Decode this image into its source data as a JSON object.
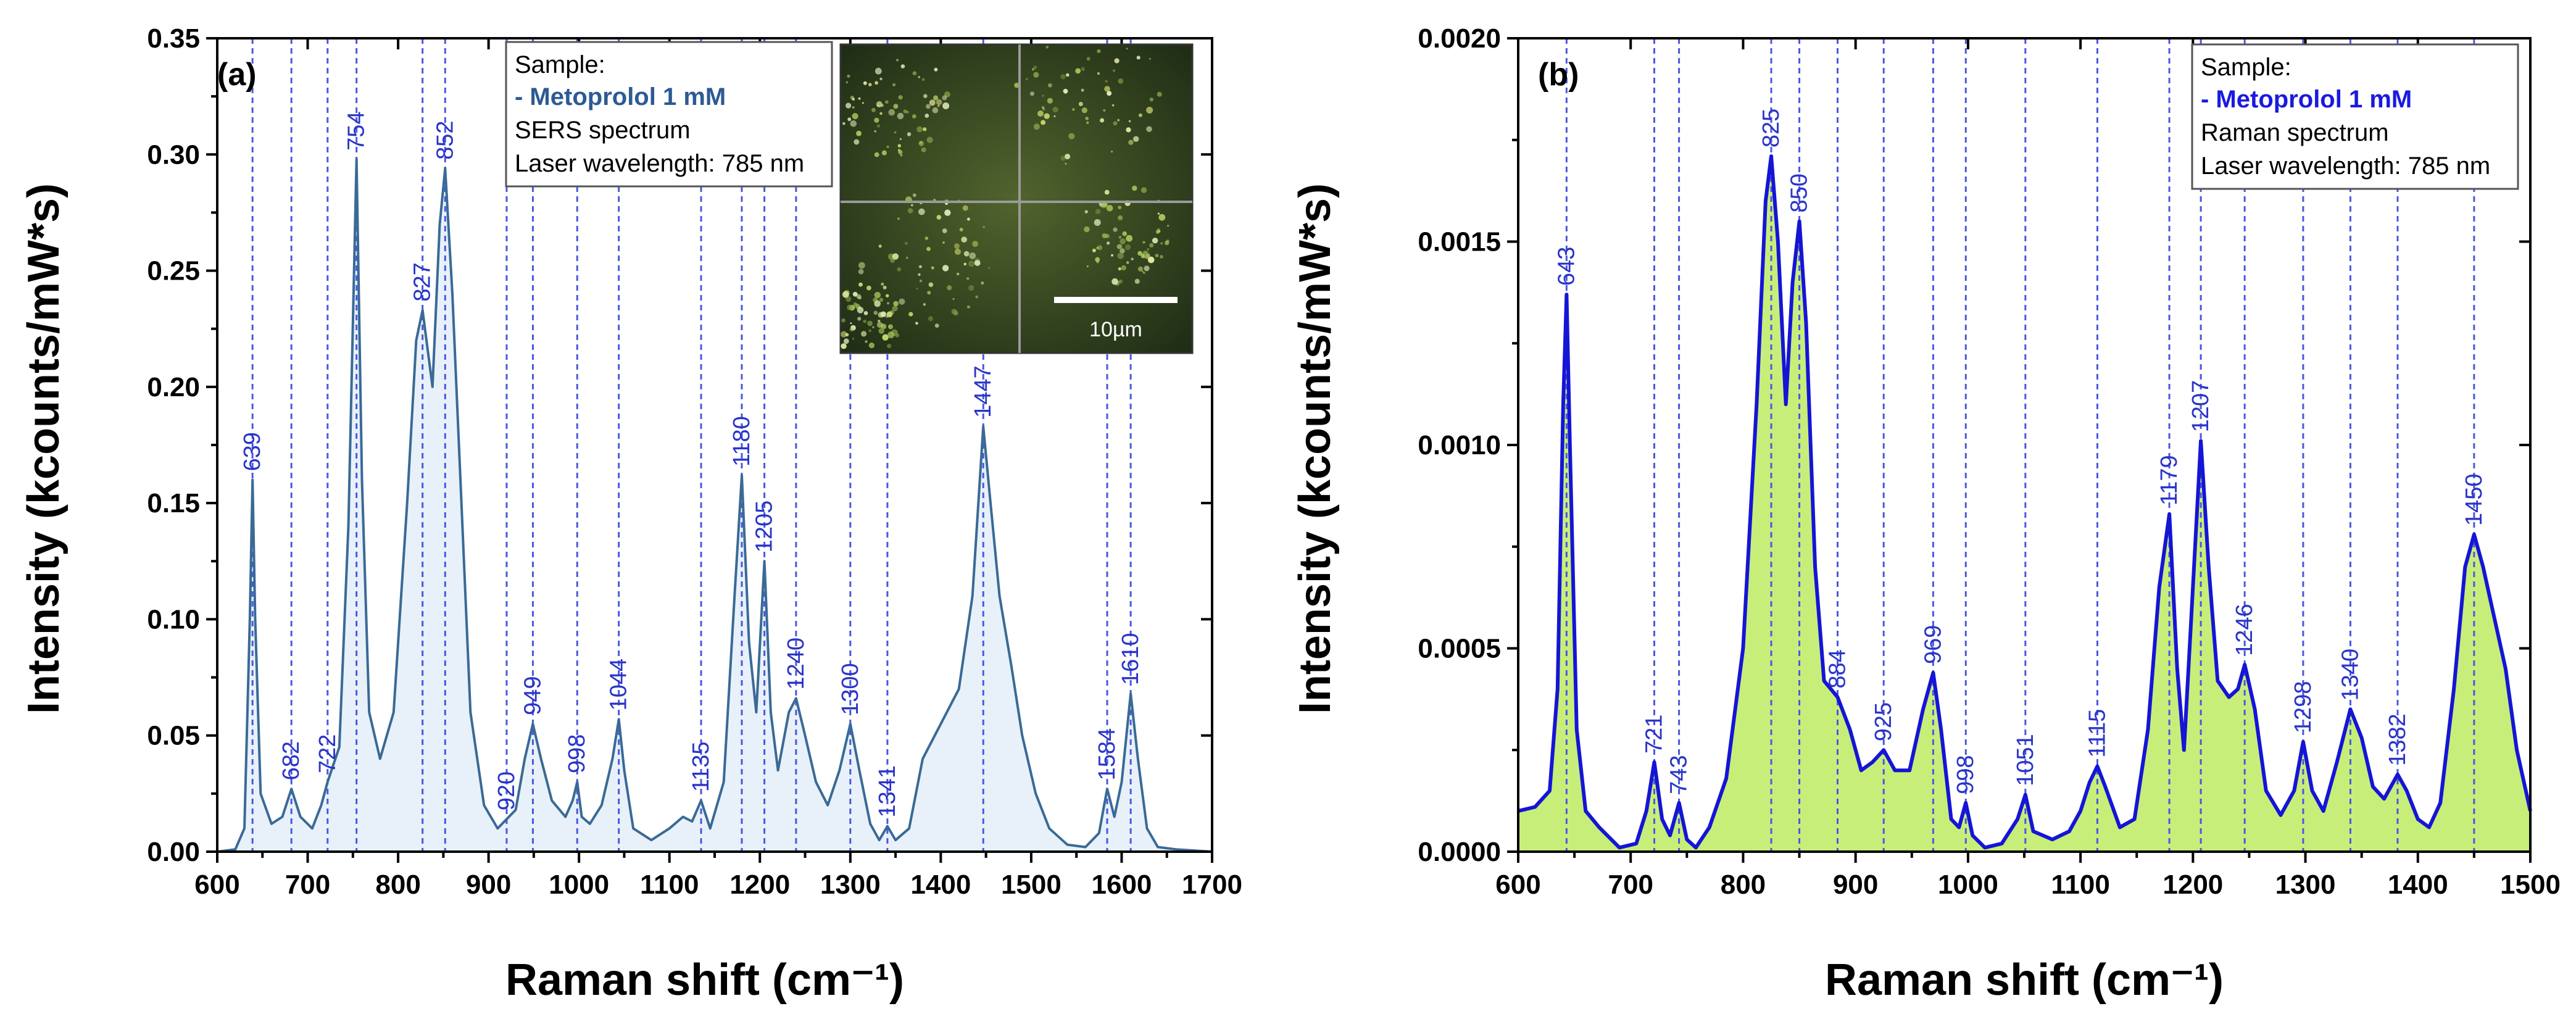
{
  "chart_data": [
    {
      "type": "line",
      "panel_label": "(a)",
      "xlabel": "Raman shift (cm⁻¹)",
      "ylabel": "Intensity (kcounts/mW*s)",
      "xlim": [
        600,
        1700
      ],
      "ylim": [
        0,
        0.35
      ],
      "xticks": [
        600,
        700,
        800,
        900,
        1000,
        1100,
        1200,
        1300,
        1400,
        1500,
        1600,
        1700
      ],
      "yticks": [
        0.0,
        0.05,
        0.1,
        0.15,
        0.2,
        0.25,
        0.3,
        0.35
      ],
      "ytick_labels": [
        "0.00",
        "0.05",
        "0.10",
        "0.15",
        "0.20",
        "0.25",
        "0.30",
        "0.35"
      ],
      "line_color": "#3a6a96",
      "fill_color": "#e8f1f9",
      "peak_label_color": "#2a35c8",
      "legend": {
        "line1": "Sample:",
        "sample": "- Metoprolol 1 mM",
        "line3": "SERS spectrum",
        "line4": "Laser wavelength: 785 nm",
        "sample_color": "#2c5a93"
      },
      "inset": {
        "description_visible": "micrograph",
        "scale_label": "10µm"
      },
      "peaks": [
        {
          "x": 639,
          "y": 0.16,
          "label": "639"
        },
        {
          "x": 682,
          "y": 0.027,
          "label": "682"
        },
        {
          "x": 722,
          "y": 0.03,
          "label": "722"
        },
        {
          "x": 754,
          "y": 0.298,
          "label": "754"
        },
        {
          "x": 827,
          "y": 0.233,
          "label": "827"
        },
        {
          "x": 852,
          "y": 0.294,
          "label": "852"
        },
        {
          "x": 920,
          "y": 0.014,
          "label": "920"
        },
        {
          "x": 949,
          "y": 0.055,
          "label": "949"
        },
        {
          "x": 998,
          "y": 0.03,
          "label": "998"
        },
        {
          "x": 1044,
          "y": 0.057,
          "label": "1044"
        },
        {
          "x": 1135,
          "y": 0.022,
          "label": "1135"
        },
        {
          "x": 1180,
          "y": 0.162,
          "label": "1180"
        },
        {
          "x": 1205,
          "y": 0.125,
          "label": "1205"
        },
        {
          "x": 1240,
          "y": 0.066,
          "label": "1240"
        },
        {
          "x": 1300,
          "y": 0.055,
          "label": "1300"
        },
        {
          "x": 1341,
          "y": 0.011,
          "label": "1341"
        },
        {
          "x": 1447,
          "y": 0.183,
          "label": "1447"
        },
        {
          "x": 1584,
          "y": 0.027,
          "label": "1584"
        },
        {
          "x": 1610,
          "y": 0.068,
          "label": "1610"
        }
      ],
      "spectrum": [
        [
          600,
          0.0
        ],
        [
          620,
          0.001
        ],
        [
          630,
          0.01
        ],
        [
          636,
          0.1
        ],
        [
          639,
          0.16
        ],
        [
          642,
          0.1
        ],
        [
          648,
          0.025
        ],
        [
          660,
          0.012
        ],
        [
          672,
          0.015
        ],
        [
          682,
          0.027
        ],
        [
          692,
          0.015
        ],
        [
          705,
          0.01
        ],
        [
          715,
          0.02
        ],
        [
          722,
          0.03
        ],
        [
          735,
          0.045
        ],
        [
          745,
          0.14
        ],
        [
          754,
          0.298
        ],
        [
          760,
          0.16
        ],
        [
          768,
          0.06
        ],
        [
          780,
          0.04
        ],
        [
          795,
          0.06
        ],
        [
          810,
          0.15
        ],
        [
          820,
          0.22
        ],
        [
          827,
          0.233
        ],
        [
          838,
          0.2
        ],
        [
          846,
          0.27
        ],
        [
          852,
          0.294
        ],
        [
          860,
          0.24
        ],
        [
          870,
          0.15
        ],
        [
          880,
          0.06
        ],
        [
          895,
          0.02
        ],
        [
          910,
          0.01
        ],
        [
          920,
          0.014
        ],
        [
          930,
          0.018
        ],
        [
          940,
          0.04
        ],
        [
          949,
          0.055
        ],
        [
          958,
          0.04
        ],
        [
          970,
          0.022
        ],
        [
          985,
          0.015
        ],
        [
          993,
          0.022
        ],
        [
          998,
          0.03
        ],
        [
          1003,
          0.015
        ],
        [
          1012,
          0.012
        ],
        [
          1025,
          0.02
        ],
        [
          1037,
          0.04
        ],
        [
          1044,
          0.057
        ],
        [
          1050,
          0.035
        ],
        [
          1060,
          0.01
        ],
        [
          1080,
          0.005
        ],
        [
          1100,
          0.01
        ],
        [
          1115,
          0.015
        ],
        [
          1125,
          0.013
        ],
        [
          1135,
          0.022
        ],
        [
          1145,
          0.01
        ],
        [
          1160,
          0.03
        ],
        [
          1172,
          0.11
        ],
        [
          1180,
          0.162
        ],
        [
          1188,
          0.09
        ],
        [
          1196,
          0.06
        ],
        [
          1205,
          0.125
        ],
        [
          1212,
          0.06
        ],
        [
          1220,
          0.035
        ],
        [
          1232,
          0.06
        ],
        [
          1240,
          0.066
        ],
        [
          1250,
          0.05
        ],
        [
          1262,
          0.03
        ],
        [
          1275,
          0.02
        ],
        [
          1288,
          0.035
        ],
        [
          1300,
          0.055
        ],
        [
          1310,
          0.035
        ],
        [
          1322,
          0.012
        ],
        [
          1332,
          0.005
        ],
        [
          1341,
          0.011
        ],
        [
          1350,
          0.005
        ],
        [
          1365,
          0.01
        ],
        [
          1380,
          0.04
        ],
        [
          1400,
          0.055
        ],
        [
          1420,
          0.07
        ],
        [
          1435,
          0.11
        ],
        [
          1447,
          0.183
        ],
        [
          1455,
          0.15
        ],
        [
          1465,
          0.11
        ],
        [
          1478,
          0.08
        ],
        [
          1490,
          0.05
        ],
        [
          1505,
          0.025
        ],
        [
          1520,
          0.01
        ],
        [
          1540,
          0.003
        ],
        [
          1560,
          0.002
        ],
        [
          1575,
          0.008
        ],
        [
          1584,
          0.027
        ],
        [
          1592,
          0.015
        ],
        [
          1600,
          0.03
        ],
        [
          1610,
          0.068
        ],
        [
          1618,
          0.04
        ],
        [
          1628,
          0.01
        ],
        [
          1640,
          0.002
        ],
        [
          1660,
          0.001
        ],
        [
          1700,
          0.0
        ]
      ]
    },
    {
      "type": "line",
      "panel_label": "(b)",
      "xlabel": "Raman shift (cm⁻¹)",
      "ylabel": "Intensity (kcounts/mW*s)",
      "xlim": [
        600,
        1500
      ],
      "ylim": [
        0,
        0.002
      ],
      "xticks": [
        600,
        700,
        800,
        900,
        1000,
        1100,
        1200,
        1300,
        1400,
        1500
      ],
      "yticks": [
        0.0,
        0.0005,
        0.001,
        0.0015,
        0.002
      ],
      "ytick_labels": [
        "0.0000",
        "0.0005",
        "0.0010",
        "0.0015",
        "0.0020"
      ],
      "line_color": "#1515d6",
      "fill_color": "#c8ee7a",
      "peak_label_color": "#2a35c8",
      "legend": {
        "line1": "Sample:",
        "sample": "- Metoprolol 1 mM",
        "line3": "Raman spectrum",
        "line4": "Laser wavelength: 785 nm",
        "sample_color": "#1a1ae0"
      },
      "peaks": [
        {
          "x": 643,
          "y": 0.00137,
          "label": "643"
        },
        {
          "x": 721,
          "y": 0.00022,
          "label": "721"
        },
        {
          "x": 743,
          "y": 0.00012,
          "label": "743"
        },
        {
          "x": 825,
          "y": 0.00171,
          "label": "825"
        },
        {
          "x": 850,
          "y": 0.00155,
          "label": "850"
        },
        {
          "x": 884,
          "y": 0.00038,
          "label": "884"
        },
        {
          "x": 925,
          "y": 0.00025,
          "label": "925"
        },
        {
          "x": 969,
          "y": 0.00044,
          "label": "969"
        },
        {
          "x": 998,
          "y": 0.00012,
          "label": "998"
        },
        {
          "x": 1051,
          "y": 0.00014,
          "label": "1051"
        },
        {
          "x": 1115,
          "y": 0.00021,
          "label": "1115"
        },
        {
          "x": 1179,
          "y": 0.00083,
          "label": "1179"
        },
        {
          "x": 1207,
          "y": 0.00101,
          "label": "1207"
        },
        {
          "x": 1246,
          "y": 0.00046,
          "label": "1246"
        },
        {
          "x": 1298,
          "y": 0.00027,
          "label": "1298"
        },
        {
          "x": 1340,
          "y": 0.00035,
          "label": "1340"
        },
        {
          "x": 1382,
          "y": 0.00019,
          "label": "1382"
        },
        {
          "x": 1450,
          "y": 0.00078,
          "label": "1450"
        }
      ],
      "spectrum": [
        [
          600,
          0.0001
        ],
        [
          615,
          0.00011
        ],
        [
          628,
          0.00015
        ],
        [
          635,
          0.0004
        ],
        [
          640,
          0.0011
        ],
        [
          643,
          0.00137
        ],
        [
          646,
          0.001
        ],
        [
          652,
          0.0003
        ],
        [
          660,
          0.0001
        ],
        [
          672,
          6e-05
        ],
        [
          690,
          1e-05
        ],
        [
          705,
          2e-05
        ],
        [
          714,
          0.0001
        ],
        [
          721,
          0.00022
        ],
        [
          728,
          8e-05
        ],
        [
          735,
          4e-05
        ],
        [
          743,
          0.00012
        ],
        [
          750,
          3e-05
        ],
        [
          758,
          1e-05
        ],
        [
          770,
          6e-05
        ],
        [
          785,
          0.00018
        ],
        [
          800,
          0.0005
        ],
        [
          812,
          0.0011
        ],
        [
          820,
          0.0016
        ],
        [
          825,
          0.00171
        ],
        [
          831,
          0.0015
        ],
        [
          838,
          0.0011
        ],
        [
          844,
          0.0014
        ],
        [
          850,
          0.00155
        ],
        [
          856,
          0.0013
        ],
        [
          864,
          0.0007
        ],
        [
          872,
          0.00042
        ],
        [
          884,
          0.00038
        ],
        [
          895,
          0.0003
        ],
        [
          905,
          0.0002
        ],
        [
          915,
          0.00022
        ],
        [
          925,
          0.00025
        ],
        [
          935,
          0.0002
        ],
        [
          948,
          0.0002
        ],
        [
          960,
          0.00035
        ],
        [
          969,
          0.00044
        ],
        [
          976,
          0.0003
        ],
        [
          985,
          8e-05
        ],
        [
          992,
          6e-05
        ],
        [
          998,
          0.00012
        ],
        [
          1004,
          4e-05
        ],
        [
          1015,
          1e-05
        ],
        [
          1030,
          2e-05
        ],
        [
          1044,
          8e-05
        ],
        [
          1051,
          0.00014
        ],
        [
          1058,
          5e-05
        ],
        [
          1075,
          3e-05
        ],
        [
          1090,
          5e-05
        ],
        [
          1100,
          0.0001
        ],
        [
          1108,
          0.00017
        ],
        [
          1115,
          0.00021
        ],
        [
          1122,
          0.00016
        ],
        [
          1135,
          6e-05
        ],
        [
          1148,
          8e-05
        ],
        [
          1160,
          0.0003
        ],
        [
          1170,
          0.00065
        ],
        [
          1179,
          0.00083
        ],
        [
          1186,
          0.00045
        ],
        [
          1192,
          0.00025
        ],
        [
          1198,
          0.00055
        ],
        [
          1207,
          0.00101
        ],
        [
          1214,
          0.0007
        ],
        [
          1222,
          0.00042
        ],
        [
          1232,
          0.00038
        ],
        [
          1240,
          0.0004
        ],
        [
          1246,
          0.00046
        ],
        [
          1255,
          0.00035
        ],
        [
          1265,
          0.00015
        ],
        [
          1278,
          9e-05
        ],
        [
          1290,
          0.00015
        ],
        [
          1298,
          0.00027
        ],
        [
          1306,
          0.00015
        ],
        [
          1316,
          0.0001
        ],
        [
          1328,
          0.00022
        ],
        [
          1340,
          0.00035
        ],
        [
          1350,
          0.00028
        ],
        [
          1360,
          0.00016
        ],
        [
          1370,
          0.00013
        ],
        [
          1382,
          0.00019
        ],
        [
          1390,
          0.00015
        ],
        [
          1400,
          8e-05
        ],
        [
          1410,
          6e-05
        ],
        [
          1420,
          0.00012
        ],
        [
          1432,
          0.0004
        ],
        [
          1442,
          0.0007
        ],
        [
          1450,
          0.00078
        ],
        [
          1458,
          0.0007
        ],
        [
          1466,
          0.0006
        ],
        [
          1478,
          0.00045
        ],
        [
          1488,
          0.00025
        ],
        [
          1500,
          0.0001
        ]
      ]
    }
  ]
}
